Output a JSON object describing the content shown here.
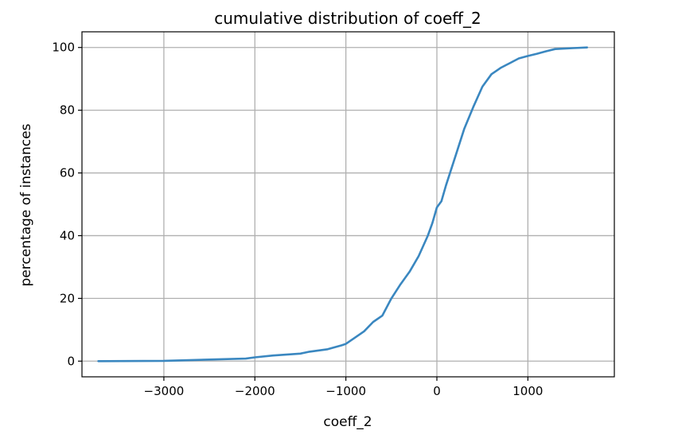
{
  "chart_data": {
    "type": "line",
    "title": "cumulative distribution of coeff_2",
    "xlabel": "coeff_2",
    "ylabel": "percentage of instances",
    "xlim": [
      -3900,
      1950
    ],
    "ylim": [
      -5,
      105
    ],
    "xticks": [
      -3000,
      -2000,
      -1000,
      0,
      1000
    ],
    "xtick_labels": [
      "−3000",
      "−2000",
      "−1000",
      "0",
      "1000"
    ],
    "yticks": [
      0,
      20,
      40,
      60,
      80,
      100
    ],
    "ytick_labels": [
      "0",
      "20",
      "40",
      "60",
      "80",
      "100"
    ],
    "grid": true,
    "legend": "none",
    "series": [
      {
        "color": "#3a87c0",
        "points": [
          [
            -3720,
            0
          ],
          [
            -3000,
            0.1
          ],
          [
            -2500,
            0.5
          ],
          [
            -2100,
            0.8
          ],
          [
            -2000,
            1.2
          ],
          [
            -1800,
            1.8
          ],
          [
            -1500,
            2.4
          ],
          [
            -1400,
            3.0
          ],
          [
            -1200,
            3.8
          ],
          [
            -1050,
            5.0
          ],
          [
            -1000,
            5.5
          ],
          [
            -900,
            7.5
          ],
          [
            -800,
            9.5
          ],
          [
            -700,
            12.5
          ],
          [
            -600,
            14.5
          ],
          [
            -500,
            20.0
          ],
          [
            -400,
            24.5
          ],
          [
            -300,
            28.5
          ],
          [
            -200,
            33.5
          ],
          [
            -100,
            40.0
          ],
          [
            -50,
            44.0
          ],
          [
            0,
            49.0
          ],
          [
            50,
            51.0
          ],
          [
            100,
            56.0
          ],
          [
            200,
            65.0
          ],
          [
            300,
            74.0
          ],
          [
            400,
            81.0
          ],
          [
            500,
            87.5
          ],
          [
            600,
            91.5
          ],
          [
            700,
            93.5
          ],
          [
            800,
            95.0
          ],
          [
            900,
            96.5
          ],
          [
            1000,
            97.3
          ],
          [
            1100,
            98.0
          ],
          [
            1200,
            98.8
          ],
          [
            1300,
            99.5
          ],
          [
            1500,
            99.8
          ],
          [
            1650,
            100.0
          ]
        ]
      }
    ]
  }
}
